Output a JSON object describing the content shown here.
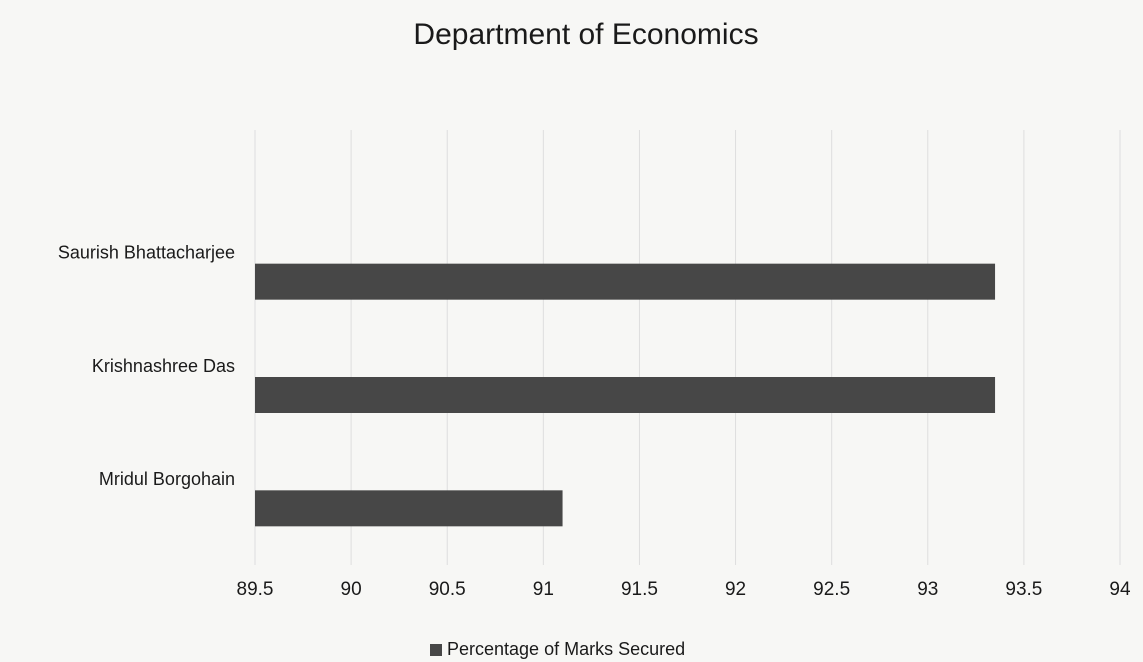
{
  "chart_data": {
    "type": "bar",
    "orientation": "horizontal",
    "title": "Department of Economics",
    "categories": [
      "Saurish Bhattacharjee",
      "Krishnashree Das",
      "Mridul Borgohain"
    ],
    "series": [
      {
        "name": "Percentage of Marks Secured",
        "color": "#474747",
        "values": [
          93.35,
          93.35,
          91.1
        ]
      }
    ],
    "xlim": [
      89.5,
      94
    ],
    "xticks": [
      89.5,
      90,
      90.5,
      91,
      91.5,
      92,
      92.5,
      93,
      93.5,
      94
    ],
    "grid": true,
    "legend": "bottom"
  }
}
